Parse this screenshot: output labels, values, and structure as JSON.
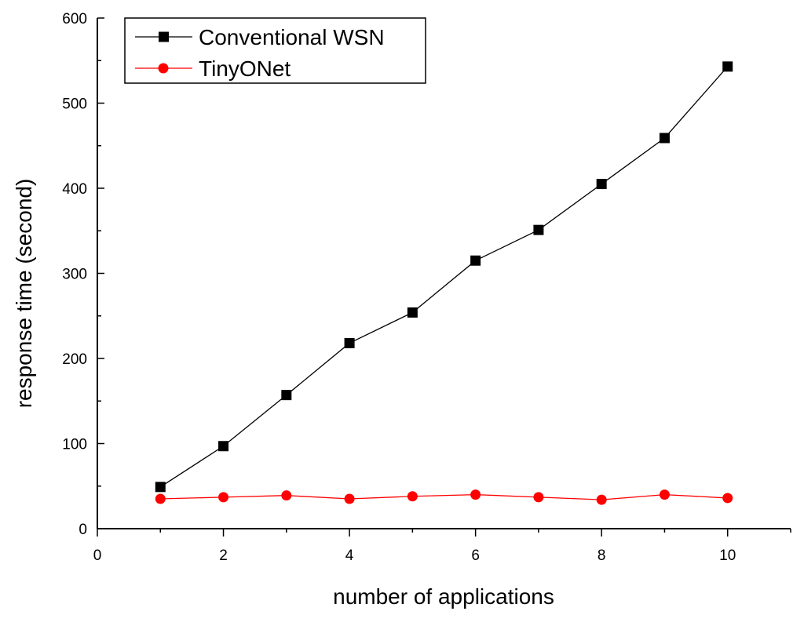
{
  "chart_data": {
    "type": "line",
    "title": "",
    "xlabel": "number of applications",
    "ylabel": "response time (second)",
    "xlim": [
      0,
      11
    ],
    "ylim": [
      0,
      600
    ],
    "xticks": [
      0,
      2,
      4,
      6,
      8,
      10
    ],
    "yticks": [
      0,
      100,
      200,
      300,
      400,
      500,
      600
    ],
    "x": [
      1,
      2,
      3,
      4,
      5,
      6,
      7,
      8,
      9,
      10
    ],
    "grid": false,
    "legend_position": "top-left",
    "series": [
      {
        "name": "Conventional WSN",
        "color": "#000000",
        "marker": "square",
        "values": [
          49,
          97,
          157,
          218,
          254,
          315,
          351,
          405,
          459,
          543
        ]
      },
      {
        "name": "TinyONet",
        "color": "#ff0000",
        "marker": "circle",
        "values": [
          35,
          37,
          39,
          35,
          38,
          40,
          37,
          34,
          40,
          36
        ]
      }
    ]
  }
}
